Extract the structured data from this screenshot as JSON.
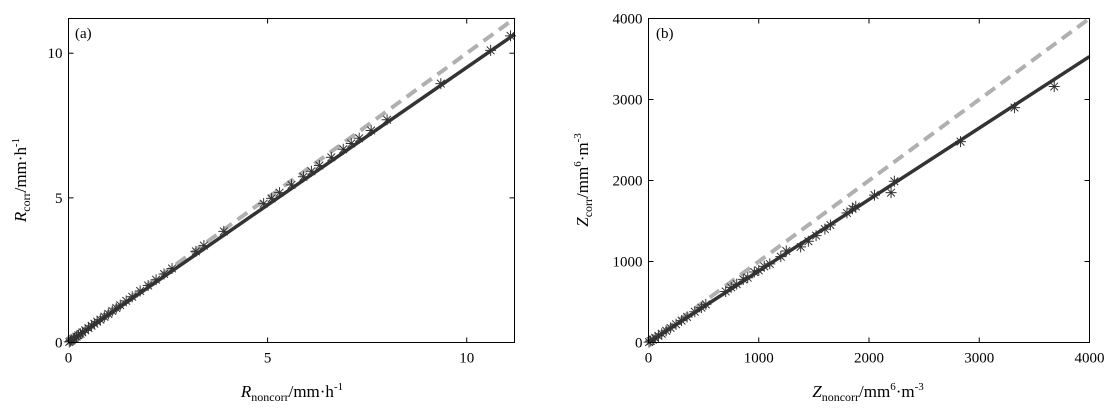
{
  "chart_data": [
    {
      "type": "scatter",
      "panel_label": "(a)",
      "xlabel": {
        "symbol": "R",
        "subscript": "noncorr",
        "unit": "/mm·h",
        "unit_sup": "-1"
      },
      "ylabel": {
        "symbol": "R",
        "subscript": "corr",
        "unit": "/mm·h",
        "unit_sup": "-1"
      },
      "xlim": [
        0,
        11.2
      ],
      "ylim": [
        0,
        11.2
      ],
      "xticks": [
        0,
        5,
        10
      ],
      "yticks": [
        0,
        5,
        10
      ],
      "grid": false,
      "series": [
        {
          "style": "asterisk-markers",
          "color": "#333333",
          "x": [
            0.02,
            0.05,
            0.08,
            0.12,
            0.15,
            0.2,
            0.25,
            0.3,
            0.35,
            0.42,
            0.5,
            0.58,
            0.65,
            0.72,
            0.8,
            0.9,
            1.0,
            1.1,
            1.2,
            1.3,
            1.45,
            1.6,
            1.8,
            2.0,
            2.2,
            2.4,
            2.6,
            3.2,
            3.4,
            3.9,
            4.9,
            5.1,
            5.3,
            5.6,
            5.9,
            6.1,
            6.3,
            6.6,
            6.9,
            7.1,
            7.3,
            7.6,
            8.0,
            9.35,
            10.6,
            11.1
          ],
          "y": [
            0.02,
            0.05,
            0.08,
            0.12,
            0.15,
            0.2,
            0.25,
            0.3,
            0.35,
            0.42,
            0.5,
            0.58,
            0.65,
            0.72,
            0.79,
            0.89,
            0.99,
            1.09,
            1.19,
            1.29,
            1.44,
            1.58,
            1.78,
            1.97,
            2.17,
            2.37,
            2.56,
            3.15,
            3.35,
            3.84,
            4.8,
            4.98,
            5.18,
            5.45,
            5.73,
            5.92,
            6.12,
            6.4,
            6.68,
            6.88,
            7.06,
            7.33,
            7.7,
            8.95,
            10.1,
            10.6
          ]
        },
        {
          "style": "solid-fit-line",
          "color": "#333333",
          "x": [
            0,
            11.2
          ],
          "y": [
            0,
            10.65
          ]
        },
        {
          "style": "dashed-reference-line",
          "color": "#b0b0b0",
          "x": [
            0,
            11.2
          ],
          "y": [
            0,
            11.2
          ]
        }
      ]
    },
    {
      "type": "scatter",
      "panel_label": "(b)",
      "xlabel": {
        "symbol": "Z",
        "subscript": "noncorr",
        "unit": "/mm",
        "unit_sup": "6",
        "unit2": "·m",
        "unit2_sup": "-3"
      },
      "ylabel": {
        "symbol": "Z",
        "subscript": "corr",
        "unit": "/mm",
        "unit_sup": "6",
        "unit2": "·m",
        "unit2_sup": "-3"
      },
      "xlim": [
        0,
        4000
      ],
      "ylim": [
        0,
        4000
      ],
      "xticks": [
        0,
        1000,
        2000,
        3000,
        4000
      ],
      "yticks": [
        0,
        1000,
        2000,
        3000,
        4000
      ],
      "grid": false,
      "series": [
        {
          "style": "asterisk-markers",
          "color": "#333333",
          "x": [
            5,
            20,
            40,
            60,
            90,
            120,
            160,
            200,
            250,
            300,
            350,
            420,
            480,
            520,
            700,
            750,
            800,
            860,
            900,
            960,
            1000,
            1050,
            1100,
            1200,
            1250,
            1380,
            1450,
            1520,
            1600,
            1650,
            1800,
            1850,
            1880,
            2050,
            2200,
            2230,
            2830,
            3320,
            3680
          ],
          "y": [
            5,
            18,
            36,
            55,
            82,
            108,
            145,
            180,
            225,
            270,
            315,
            380,
            430,
            470,
            630,
            680,
            720,
            780,
            800,
            870,
            890,
            940,
            970,
            1060,
            1130,
            1180,
            1250,
            1320,
            1400,
            1450,
            1600,
            1650,
            1680,
            1820,
            1850,
            1990,
            2480,
            2900,
            3160
          ]
        },
        {
          "style": "solid-fit-line",
          "color": "#333333",
          "x": [
            0,
            4000
          ],
          "y": [
            0,
            3530
          ]
        },
        {
          "style": "dashed-reference-line",
          "color": "#b0b0b0",
          "x": [
            0,
            4000
          ],
          "y": [
            0,
            4000
          ]
        }
      ]
    }
  ]
}
